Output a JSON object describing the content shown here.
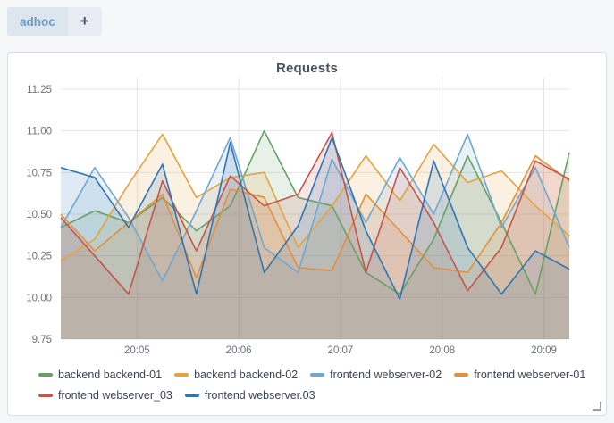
{
  "tab_bar": {
    "tabs": [
      {
        "label": "adhoc",
        "active": true
      }
    ],
    "add_button_label": "+"
  },
  "panel": {
    "title": "Requests"
  },
  "colors": {
    "page_background": "#f4f6f8",
    "panel_background": "#ffffff",
    "panel_border": "#d9dee5",
    "tab_background": "#dde6ef",
    "tab_text": "#699bc4",
    "add_tab_background": "#e9edf3",
    "grid_line": "#e3e4e6",
    "tick_label": "#6b7480",
    "title_text": "#4a5360",
    "legend_text": "#3b4452"
  },
  "chart_data": {
    "type": "line",
    "title": "Requests",
    "x": [
      "20:04:15",
      "20:04:35",
      "20:04:55",
      "20:05:15",
      "20:05:35",
      "20:05:55",
      "20:06:15",
      "20:06:35",
      "20:06:55",
      "20:07:15",
      "20:07:35",
      "20:07:55",
      "20:08:15",
      "20:08:35",
      "20:08:55",
      "20:09:15"
    ],
    "xtick_labels": [
      "20:05",
      "20:06",
      "20:07",
      "20:08",
      "20:09"
    ],
    "yticks": [
      9.75,
      10.0,
      10.25,
      10.5,
      10.75,
      11.0,
      11.25
    ],
    "ylim": [
      9.75,
      11.32
    ],
    "grid": true,
    "area_fill": true,
    "fill_opacity": 0.15,
    "legend_position": "bottom",
    "series": [
      {
        "name": "backend backend-01",
        "color": "#68a063",
        "values": [
          10.42,
          10.52,
          10.45,
          10.6,
          10.4,
          10.55,
          11.0,
          10.6,
          10.55,
          10.15,
          10.02,
          10.35,
          10.85,
          10.45,
          10.02,
          10.87
        ]
      },
      {
        "name": "backend backend-02",
        "color": "#e6a23c",
        "values": [
          10.22,
          10.35,
          10.68,
          10.98,
          10.6,
          10.72,
          10.75,
          10.3,
          10.55,
          10.85,
          10.58,
          10.92,
          10.69,
          10.76,
          10.55,
          10.37
        ]
      },
      {
        "name": "frontend webserver-02",
        "color": "#6fa8d0",
        "values": [
          10.42,
          10.78,
          10.48,
          10.1,
          10.52,
          10.96,
          10.3,
          10.15,
          10.83,
          10.45,
          10.84,
          10.5,
          10.98,
          10.42,
          10.78,
          10.3
        ]
      },
      {
        "name": "frontend webserver-01",
        "color": "#e28f3e",
        "values": [
          10.5,
          10.28,
          10.45,
          10.62,
          10.12,
          10.65,
          10.6,
          10.18,
          10.16,
          10.62,
          10.4,
          10.18,
          10.15,
          10.45,
          10.85,
          10.7
        ]
      },
      {
        "name": "frontend webserver_03",
        "color": "#c4544c",
        "values": [
          10.48,
          10.25,
          10.02,
          10.7,
          10.28,
          10.73,
          10.55,
          10.62,
          10.99,
          10.15,
          10.78,
          10.45,
          10.04,
          10.3,
          10.82,
          10.71
        ]
      },
      {
        "name": "frontend webserver.03",
        "color": "#2f74b3",
        "values": [
          10.78,
          10.72,
          10.42,
          10.8,
          10.02,
          10.93,
          10.15,
          10.43,
          10.96,
          10.4,
          9.99,
          10.82,
          10.3,
          10.02,
          10.28,
          10.17
        ]
      }
    ]
  }
}
